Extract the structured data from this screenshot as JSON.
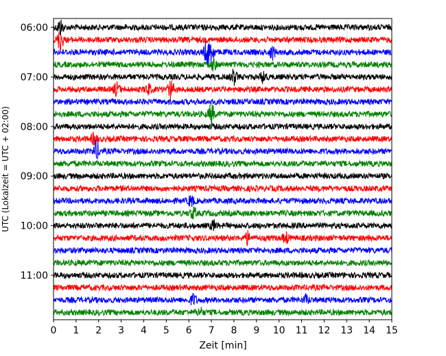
{
  "chart_data": {
    "type": "line",
    "title": "",
    "xlabel": "Zeit  [min]",
    "ylabel": "UTC (Lokalzeit = UTC + 02:00)",
    "xlim": [
      0,
      15
    ],
    "x_ticks": [
      "0",
      "1",
      "2",
      "3",
      "4",
      "5",
      "6",
      "7",
      "8",
      "9",
      "10",
      "11",
      "12",
      "13",
      "14",
      "15"
    ],
    "y_ticks": [
      "06:00",
      "07:00",
      "08:00",
      "09:00",
      "10:00",
      "11:00"
    ],
    "grid": "vertical dotted",
    "trace_interval_min": 15,
    "series_colors": [
      "#000000",
      "#ff0000",
      "#0000ff",
      "#008000"
    ],
    "traces": [
      {
        "start": "06:00",
        "color": "#000000"
      },
      {
        "start": "06:15",
        "color": "#ff0000"
      },
      {
        "start": "06:30",
        "color": "#0000ff"
      },
      {
        "start": "06:45",
        "color": "#008000"
      },
      {
        "start": "07:00",
        "color": "#000000"
      },
      {
        "start": "07:15",
        "color": "#ff0000"
      },
      {
        "start": "07:30",
        "color": "#0000ff"
      },
      {
        "start": "07:45",
        "color": "#008000"
      },
      {
        "start": "08:00",
        "color": "#000000"
      },
      {
        "start": "08:15",
        "color": "#ff0000"
      },
      {
        "start": "08:30",
        "color": "#0000ff"
      },
      {
        "start": "08:45",
        "color": "#008000"
      },
      {
        "start": "09:00",
        "color": "#000000"
      },
      {
        "start": "09:15",
        "color": "#ff0000"
      },
      {
        "start": "09:30",
        "color": "#0000ff"
      },
      {
        "start": "09:45",
        "color": "#008000"
      },
      {
        "start": "10:00",
        "color": "#000000"
      },
      {
        "start": "10:15",
        "color": "#ff0000"
      },
      {
        "start": "10:30",
        "color": "#0000ff"
      },
      {
        "start": "10:45",
        "color": "#008000"
      },
      {
        "start": "11:00",
        "color": "#000000"
      },
      {
        "start": "11:15",
        "color": "#ff0000"
      },
      {
        "start": "11:30",
        "color": "#0000ff"
      },
      {
        "start": "11:45",
        "color": "#008000"
      }
    ],
    "events": [
      {
        "trace": "06:00",
        "time_min": 0.3,
        "amp": 2.2
      },
      {
        "trace": "06:15",
        "time_min": 0.3,
        "amp": 3.0
      },
      {
        "trace": "06:30",
        "time_min": 6.8,
        "amp": 3.2
      },
      {
        "trace": "06:30",
        "time_min": 7.0,
        "amp": 2.5
      },
      {
        "trace": "06:30",
        "time_min": 9.7,
        "amp": 1.8
      },
      {
        "trace": "06:45",
        "time_min": 7.1,
        "amp": 1.5
      },
      {
        "trace": "07:00",
        "time_min": 8.0,
        "amp": 2.0
      },
      {
        "trace": "07:00",
        "time_min": 9.3,
        "amp": 1.6
      },
      {
        "trace": "07:15",
        "time_min": 2.8,
        "amp": 1.8
      },
      {
        "trace": "07:15",
        "time_min": 5.2,
        "amp": 2.5
      },
      {
        "trace": "07:15",
        "time_min": 4.2,
        "amp": 1.4
      },
      {
        "trace": "07:45",
        "time_min": 7.0,
        "amp": 2.8
      },
      {
        "trace": "08:15",
        "time_min": 1.8,
        "amp": 1.5
      },
      {
        "trace": "08:30",
        "time_min": 1.9,
        "amp": 2.6
      },
      {
        "trace": "09:30",
        "time_min": 6.1,
        "amp": 1.4
      },
      {
        "trace": "09:45",
        "time_min": 6.2,
        "amp": 1.5
      },
      {
        "trace": "10:00",
        "time_min": 7.1,
        "amp": 1.3
      },
      {
        "trace": "10:15",
        "time_min": 8.6,
        "amp": 1.6
      },
      {
        "trace": "10:15",
        "time_min": 10.3,
        "amp": 1.4
      },
      {
        "trace": "11:30",
        "time_min": 6.2,
        "amp": 1.5
      },
      {
        "trace": "11:30",
        "time_min": 11.2,
        "amp": 1.2
      },
      {
        "trace": "11:45",
        "time_min": 6.5,
        "amp": 1.1
      }
    ]
  }
}
